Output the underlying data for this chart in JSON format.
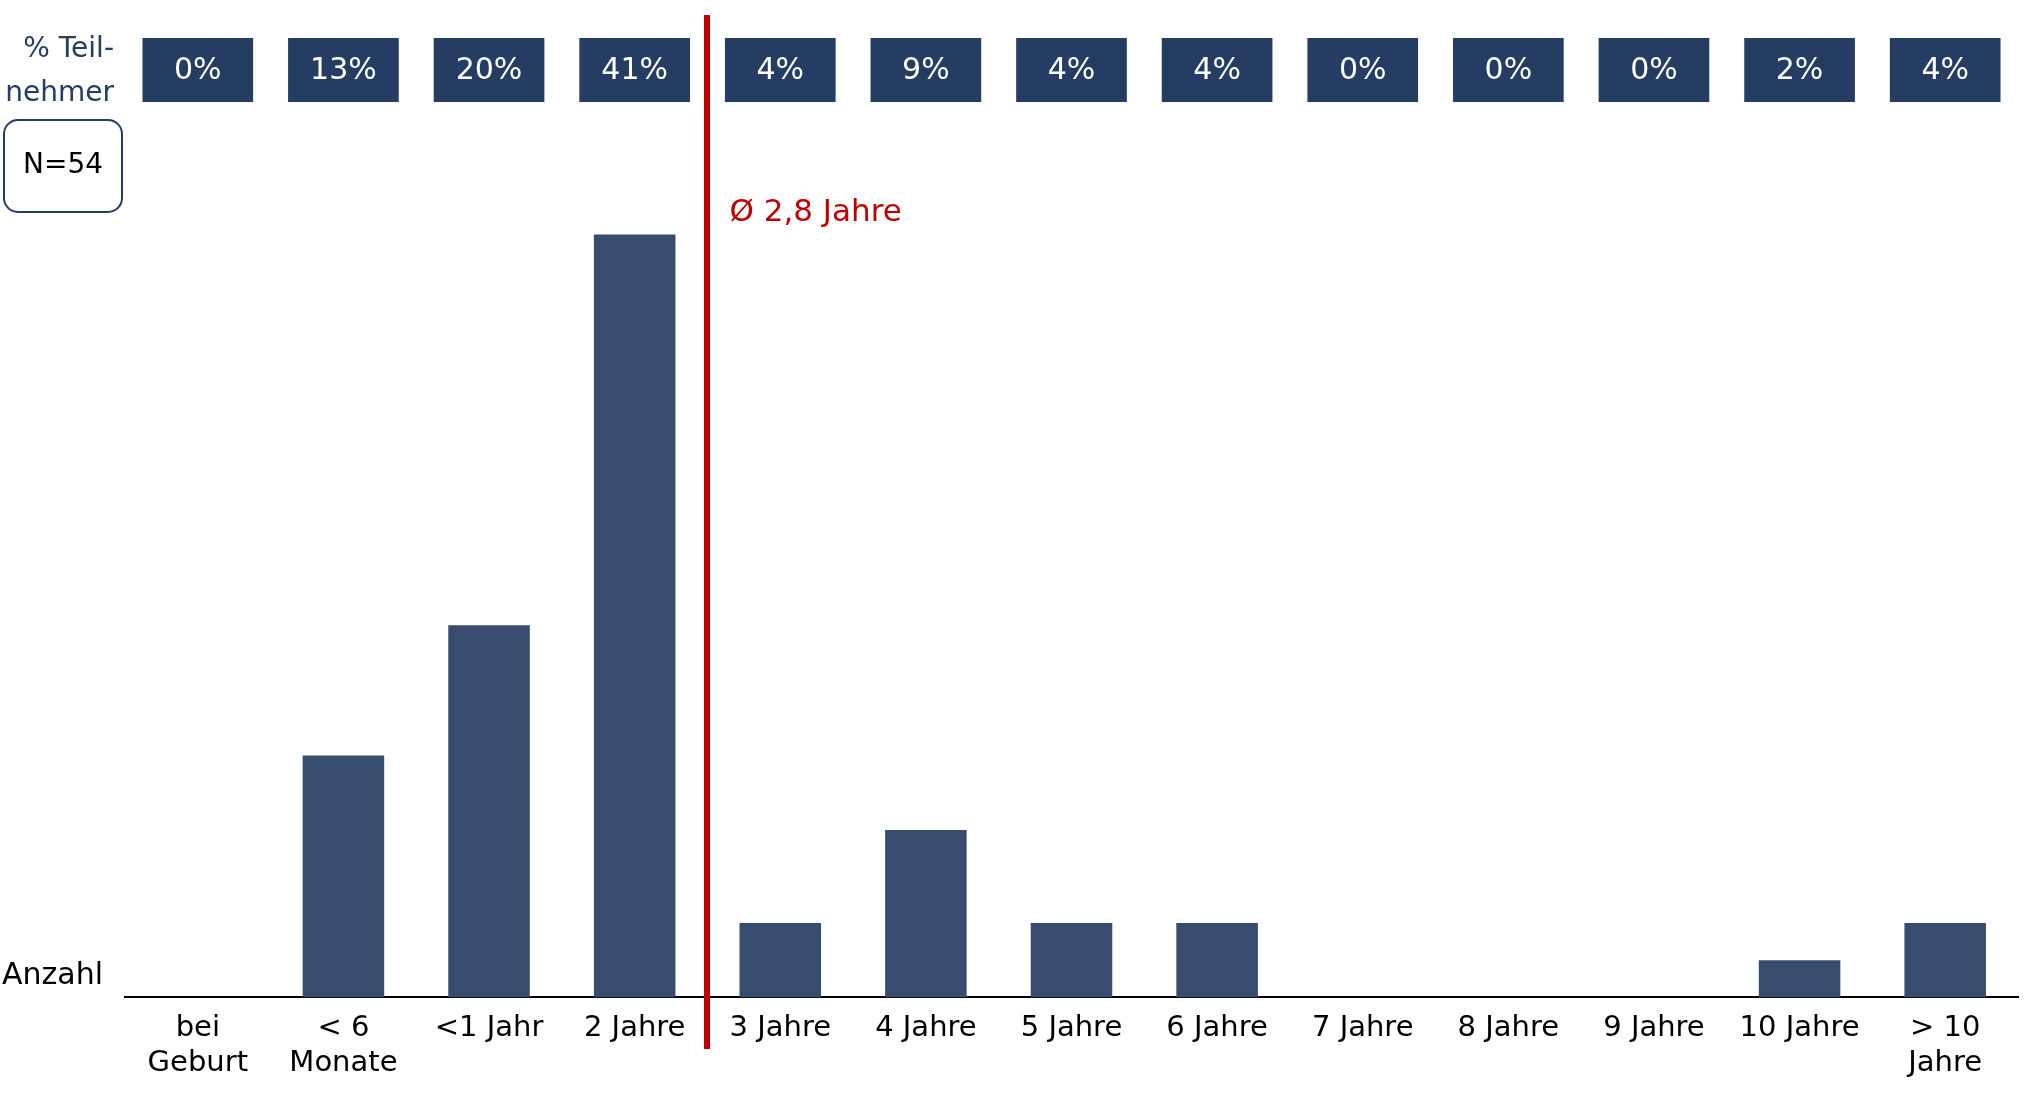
{
  "chart_data": {
    "type": "bar",
    "ylabel": "Anzahl",
    "categories": [
      "bei Geburt",
      "< 6 Monate",
      "<1 Jahr",
      "2 Jahre",
      "3 Jahre",
      "4 Jahre",
      "5 Jahre",
      "6 Jahre",
      "7 Jahre",
      "8 Jahre",
      "9 Jahre",
      "10 Jahre",
      "> 10 Jahre"
    ],
    "values": [
      0,
      13,
      20,
      41,
      4,
      9,
      4,
      4,
      0,
      0,
      0,
      2,
      4
    ],
    "value_labels": [
      "0%",
      "13%",
      "20%",
      "41%",
      "4%",
      "9%",
      "4%",
      "4%",
      "0%",
      "0%",
      "0%",
      "2%",
      "4%"
    ],
    "color": "#374c6e",
    "annotations": [
      "% Teil-\nnehmer",
      "N=54",
      "Ø 2,8 Jahre"
    ],
    "legend": false,
    "grid": false
  }
}
